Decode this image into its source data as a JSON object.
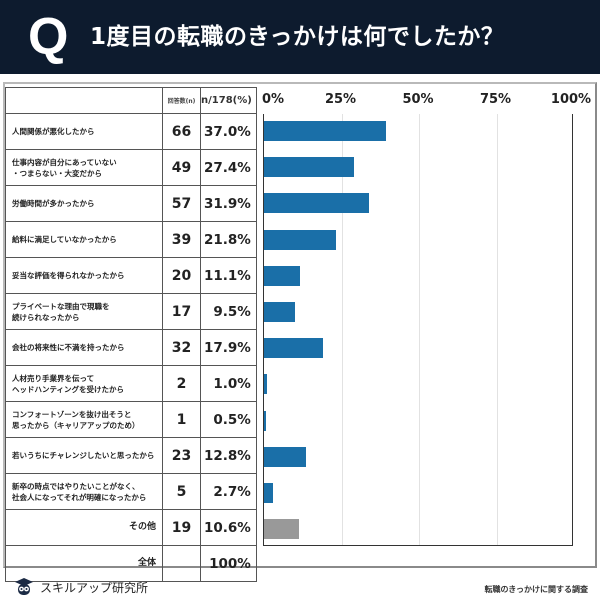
{
  "header": {
    "mark": "Q",
    "title": "1度目の転職のきっかけは何でしたか？"
  },
  "table": {
    "col_n_header": "回答数(n)",
    "col_pct_header": "n/178(%)",
    "rows": [
      {
        "label": "人間関係が悪化したから",
        "n": "66",
        "pct": "37.0%"
      },
      {
        "label": "仕事内容が自分にあっていない\n・つまらない・大変だから",
        "n": "49",
        "pct": "27.4%"
      },
      {
        "label": "労働時間が多かったから",
        "n": "57",
        "pct": "31.9%"
      },
      {
        "label": "給料に満足していなかったから",
        "n": "39",
        "pct": "21.8%"
      },
      {
        "label": "妥当な評価を得られなかったから",
        "n": "20",
        "pct": "11.1%"
      },
      {
        "label": "プライベートな理由で現職を\n続けられなったから",
        "n": "17",
        "pct": "9.5%"
      },
      {
        "label": "会社の将来性に不満を持ったから",
        "n": "32",
        "pct": "17.9%"
      },
      {
        "label": "人材売り手業界を伝って\nヘッドハンティングを受けたから",
        "n": "2",
        "pct": "1.0%"
      },
      {
        "label": "コンフォートゾーンを抜け出そうと\n思ったから（キャリアアップのため）",
        "n": "1",
        "pct": "0.5%"
      },
      {
        "label": "若いうちにチャレンジしたいと思ったから",
        "n": "23",
        "pct": "12.8%"
      },
      {
        "label": "新卒の時点ではやりたいことがなく、\n社会人になってそれが明確になったから",
        "n": "5",
        "pct": "2.7%"
      },
      {
        "label": "その他",
        "n": "19",
        "pct": "10.6%"
      }
    ],
    "total": {
      "label": "全体",
      "n": "",
      "pct": "100%"
    }
  },
  "chart_data": {
    "type": "bar",
    "orientation": "horizontal",
    "title": "1度目の転職のきっかけは何でしたか？",
    "xlabel": "",
    "ylabel": "",
    "xlim": [
      0,
      100
    ],
    "x_ticks": [
      "0%",
      "25%",
      "50%",
      "75%",
      "100%"
    ],
    "grid": true,
    "categories": [
      "人間関係が悪化したから",
      "仕事内容が自分にあっていない・つまらない・大変だから",
      "労働時間が多かったから",
      "給料に満足していなかったから",
      "妥当な評価を得られなかったから",
      "プライベートな理由で現職を続けられなったから",
      "会社の将来性に不満を持ったから",
      "人材売り手業界を伝ってヘッドハンティングを受けたから",
      "コンフォートゾーンを抜け出そうと思ったから（キャリアアップのため）",
      "若いうちにチャレンジしたいと思ったから",
      "新卒の時点ではやりたいことがなく、社会人になってそれが明確になったから",
      "その他"
    ],
    "values": [
      37.0,
      27.4,
      31.9,
      21.8,
      11.1,
      9.5,
      17.9,
      1.0,
      0.5,
      12.8,
      2.7,
      10.6
    ],
    "counts": [
      66,
      49,
      57,
      39,
      20,
      17,
      32,
      2,
      1,
      23,
      5,
      19
    ],
    "colors": {
      "primary": "#1a6fa8",
      "other": "#999999"
    }
  },
  "footer": {
    "brand": "スキルアップ研究所",
    "source": "転職のきっかけに関する調査"
  },
  "colors": {
    "header_bg": "#0d1b2e",
    "bar": "#1a6fa8",
    "bar_other": "#999999"
  }
}
